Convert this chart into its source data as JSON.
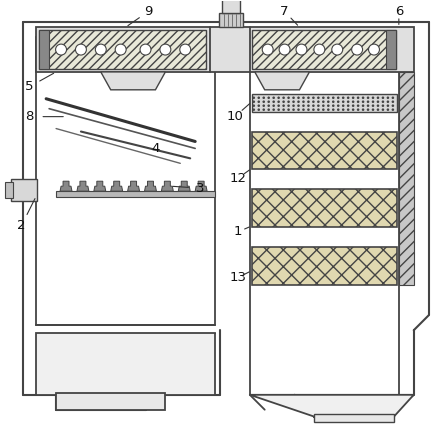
{
  "bg_color": "#ffffff",
  "lc": "#444444",
  "lc_dark": "#222222",
  "fc_light": "#f5f5f5",
  "fc_gray": "#d0d0d0",
  "fc_hatch": "#e8e4d0",
  "fc_mesh": "#e0e0e0"
}
